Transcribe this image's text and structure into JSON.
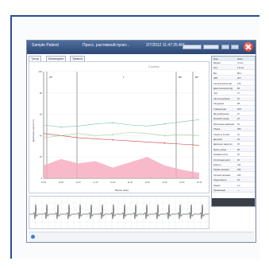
{
  "window": {
    "patient_name": "Sample Patient",
    "subtitle": "Пресс. растяжной пункт...",
    "datetime": "2/7/2012 11:47:25 AM",
    "colors": {
      "title_bg": "#3a5b8c",
      "pink_fill": "#f6a9bd",
      "red_line": "#d04040",
      "teal_line": "#79c2b8",
      "green_line": "#9bd08a"
    }
  },
  "tabs": [
    {
      "label": "Тренд"
    },
    {
      "label": "Мониторинг"
    },
    {
      "label": "Тревоги"
    }
  ],
  "chart": {
    "top_label": "Ступень",
    "phase_labels": [
      "РР",
      "1",
      "ВР",
      "ВР"
    ],
    "y_ticks": [
      "100",
      "80",
      "60",
      "40",
      "20",
      "0"
    ],
    "x_ticks": [
      "10:40",
      "10:50",
      "11:00",
      "11:10",
      "11:20",
      "11:30",
      "11:40",
      "11:50",
      "12:00",
      "12:10"
    ],
    "ylabel": "Давление (мм рт.ст.)",
    "xlabel": "Время (мин)"
  },
  "chart_data": {
    "type": "line",
    "x": [
      0,
      1,
      2,
      3,
      4,
      5,
      6,
      7,
      8,
      9
    ],
    "series": [
      {
        "values": [
          42,
          40,
          38,
          37,
          36,
          35,
          34,
          33,
          32,
          31
        ]
      },
      {
        "values": [
          50,
          48,
          49,
          51,
          52,
          50,
          49,
          51,
          53,
          55
        ]
      },
      {
        "values": [
          38,
          40,
          42,
          40,
          41,
          43,
          42,
          40,
          41,
          40
        ]
      },
      {
        "values": [
          12,
          18,
          14,
          16,
          10,
          15,
          20,
          12,
          8,
          5
        ]
      }
    ],
    "ylim": [
      0,
      100
    ]
  },
  "side_panel": {
    "headers": [
      "Пар.",
      "Знач."
    ],
    "rows": [
      {
        "k": "Возраст",
        "v": "72 лет"
      },
      {
        "k": "Рост",
        "v": "172 см"
      },
      {
        "k": "Вес",
        "v": "85 кг"
      },
      {
        "k": "ИМТ",
        "v": "28.7"
      },
      {
        "k": "Систолическое АД",
        "v": "140"
      },
      {
        "k": "Диастолическое АД",
        "v": "85"
      },
      {
        "k": "ЧСС",
        "v": "72"
      },
      {
        "k": "Частота дыхания",
        "v": "16"
      },
      {
        "k": "Сатурация",
        "v": "98"
      },
      {
        "k": "Температура",
        "v": "36.6"
      },
      {
        "k": "Внутрибрюшное",
        "v": "12"
      },
      {
        "k": "Мочевой пузырь",
        "v": "18"
      },
      {
        "k": "Ректальное давление",
        "v": "10"
      },
      {
        "k": "Объем",
        "v": "350"
      },
      {
        "k": "Скорость потока",
        "v": "12"
      },
      {
        "k": "Детрузор",
        "v": "24"
      },
      {
        "k": "Давление закрытия",
        "v": "45"
      },
      {
        "k": "Функц. длина",
        "v": "28"
      },
      {
        "k": "Пиковый поток",
        "v": "15"
      },
      {
        "k": "Остаточная моча",
        "v": "40"
      },
      {
        "k": "Емкость",
        "v": "420"
      },
      {
        "k": "Первое желание",
        "v": "180"
      },
      {
        "k": "Сильное желание",
        "v": "320"
      },
      {
        "k": "Податливость",
        "v": "22"
      },
      {
        "k": "Индекс",
        "v": "1.2"
      },
      {
        "k": "Примечание",
        "v": "—"
      }
    ]
  },
  "ecg": {
    "grid_color": "#d7dde6"
  }
}
